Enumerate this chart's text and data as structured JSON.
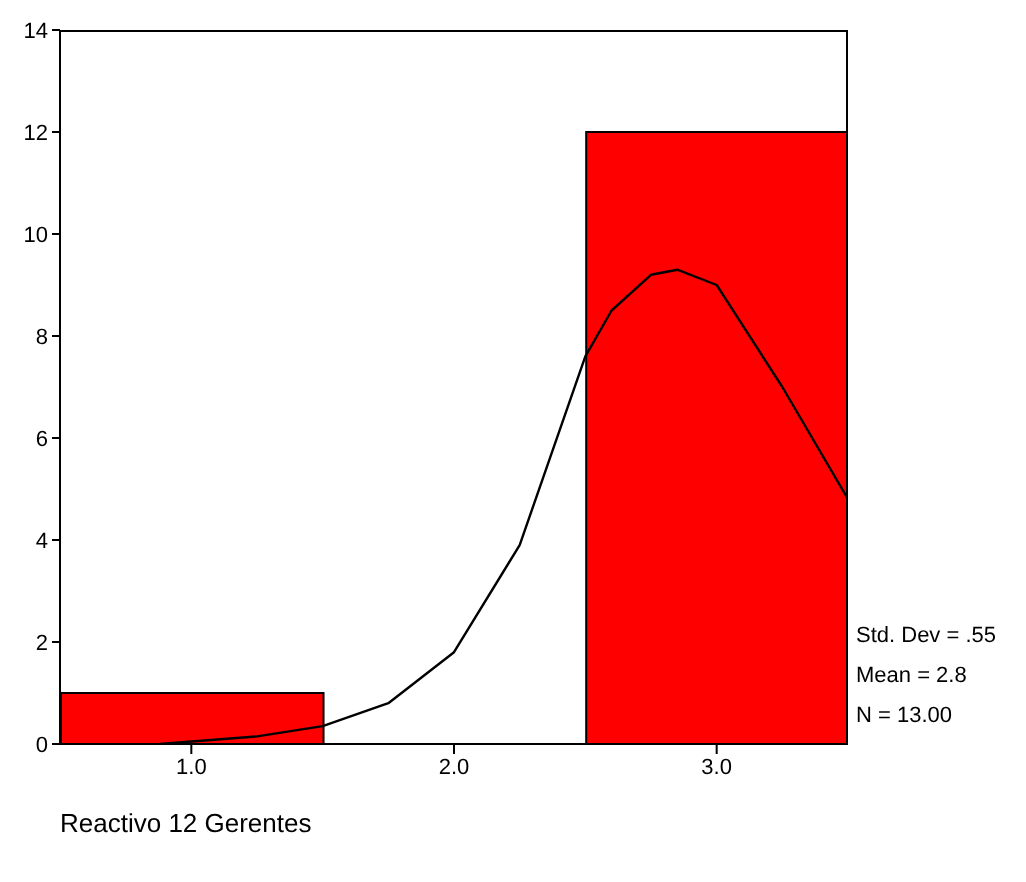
{
  "chart_data": {
    "type": "histogram",
    "xlabel": "Reactivo 12 Gerentes",
    "bins": [
      0.5,
      1.5,
      2.5,
      3.5
    ],
    "values": [
      1,
      0,
      12
    ],
    "color": "#ff0000",
    "series": [
      {
        "type": "line",
        "color": "#000000",
        "x": [
          0.88,
          1.0,
          1.25,
          1.5,
          1.75,
          2.0,
          2.25,
          2.5,
          2.6,
          2.75,
          2.85,
          3.0,
          3.25,
          3.5
        ],
        "values": [
          0,
          0.05,
          0.15,
          0.35,
          0.8,
          1.8,
          3.9,
          7.6,
          8.5,
          9.2,
          9.3,
          9.0,
          7.0,
          4.8
        ]
      }
    ],
    "xlim": [
      0.5,
      3.5
    ],
    "xticks": [
      {
        "value": 1,
        "label": "1.0"
      },
      {
        "value": 2,
        "label": "2.0"
      },
      {
        "value": 3,
        "label": "3.0"
      }
    ],
    "ylim": [
      0,
      14
    ],
    "yticks": [
      0,
      2,
      4,
      6,
      8,
      10,
      12,
      14
    ],
    "marker": "none",
    "annotations": [
      "Std. Dev = .55",
      "Mean = 2.8",
      "N = 13.00"
    ]
  }
}
